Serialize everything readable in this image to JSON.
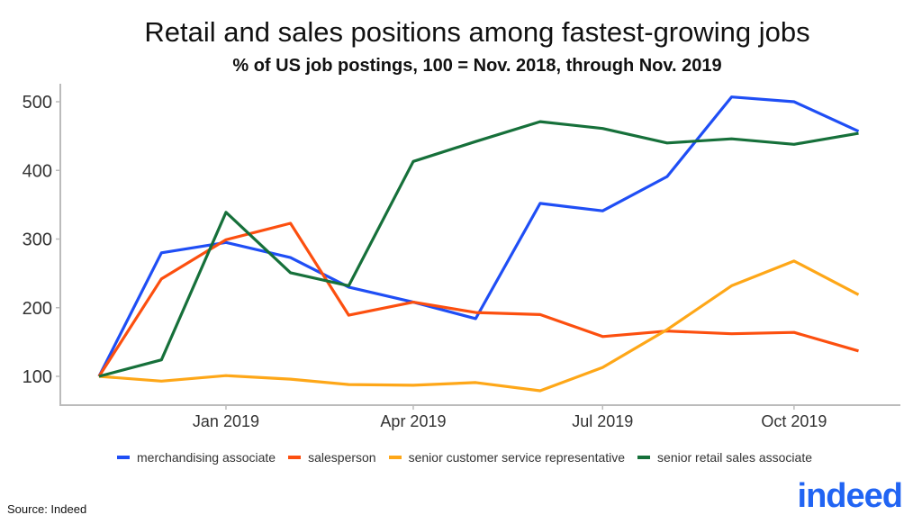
{
  "chart_data": {
    "type": "line",
    "title": "Retail and sales positions among fastest-growing jobs",
    "subtitle": "% of US job postings, 100 = Nov. 2018, through Nov. 2019",
    "x": [
      "2018-11-01",
      "2018-12-01",
      "2019-01-01",
      "2019-02-01",
      "2019-03-01",
      "2019-04-01",
      "2019-05-01",
      "2019-06-01",
      "2019-07-01",
      "2019-08-01",
      "2019-09-01",
      "2019-10-01",
      "2019-11-01"
    ],
    "xticks": [
      {
        "date": "2019-01-01",
        "label": "Jan 2019"
      },
      {
        "date": "2019-04-01",
        "label": "Apr 2019"
      },
      {
        "date": "2019-07-01",
        "label": "Jul 2019"
      },
      {
        "date": "2019-10-01",
        "label": "Oct 2019"
      }
    ],
    "yticks": [
      100,
      200,
      300,
      400,
      500
    ],
    "ylim": [
      60,
      525
    ],
    "grid": false,
    "legend_position": "bottom",
    "series": [
      {
        "name": "merchandising associate",
        "color": "#1f4ef5",
        "values": [
          100,
          280,
          295,
          273,
          230,
          208,
          184,
          352,
          341,
          391,
          507,
          500,
          457
        ]
      },
      {
        "name": "salesperson",
        "color": "#fc4f0f",
        "values": [
          100,
          242,
          299,
          323,
          189,
          208,
          193,
          190,
          158,
          166,
          162,
          164,
          137
        ]
      },
      {
        "name": "senior customer service representative",
        "color": "#fea718",
        "values": [
          100,
          93,
          101,
          96,
          88,
          87,
          91,
          79,
          113,
          168,
          232,
          268,
          219
        ]
      },
      {
        "name": "senior retail sales associate",
        "color": "#16703a",
        "values": [
          100,
          124,
          339,
          251,
          232,
          413,
          442,
          471,
          461,
          440,
          446,
          438,
          454
        ]
      }
    ]
  },
  "source": "Source: Indeed",
  "logo_text": "indeed"
}
